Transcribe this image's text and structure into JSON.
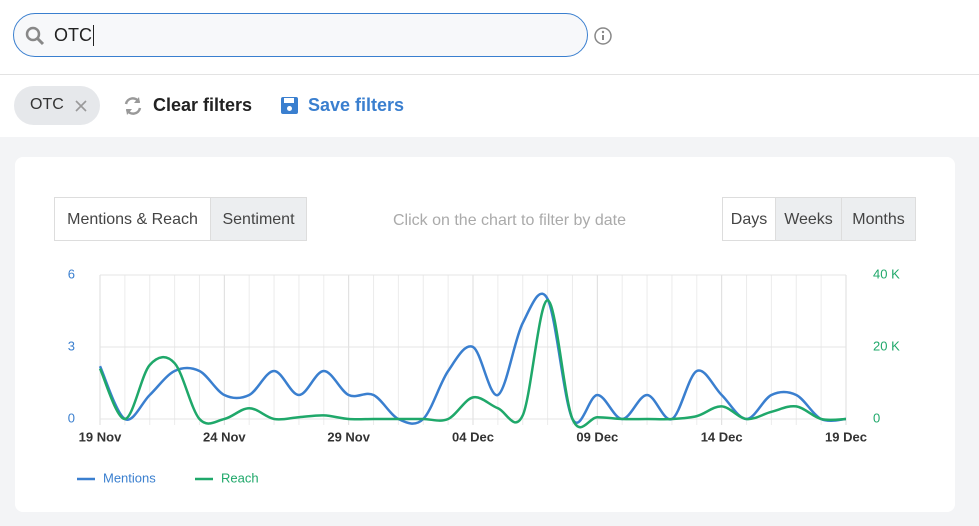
{
  "search": {
    "query": "OTC"
  },
  "filters": {
    "chips": [
      "OTC"
    ],
    "clear": "Clear filters",
    "save": "Save filters"
  },
  "toolbar": {
    "views": [
      "Mentions & Reach",
      "Sentiment"
    ],
    "hint": "Click on the chart to filter by date",
    "periods": [
      "Days",
      "Weeks",
      "Months"
    ]
  },
  "chart_data": {
    "type": "line",
    "categories": [
      "19 Nov",
      null,
      null,
      null,
      null,
      "24 Nov",
      null,
      null,
      null,
      null,
      "29 Nov",
      null,
      null,
      null,
      null,
      "04 Dec",
      null,
      null,
      null,
      null,
      "09 Dec",
      null,
      null,
      null,
      null,
      "14 Dec",
      null,
      null,
      null,
      null,
      "19 Dec"
    ],
    "series": [
      {
        "name": "Mentions",
        "color": "#3a7fcf",
        "values": [
          2.2,
          0,
          1,
          2,
          2,
          1,
          1,
          2,
          1,
          2,
          1,
          1,
          0,
          0,
          2,
          3,
          1,
          4,
          5,
          0,
          1,
          0,
          1,
          0,
          2,
          1,
          0,
          1,
          1,
          0,
          0
        ]
      },
      {
        "name": "Reach",
        "color": "#1fa86a",
        "axis": "y2",
        "values": [
          14000,
          0,
          15000,
          15500,
          0,
          0,
          3000,
          0,
          500,
          1000,
          0,
          0,
          0,
          0,
          0,
          6000,
          3000,
          1000,
          33000,
          0,
          500,
          0,
          0,
          0,
          800,
          3500,
          0,
          2000,
          3500,
          0,
          0
        ]
      }
    ],
    "ylim": [
      0,
      6
    ],
    "yticks": [
      0,
      3,
      6
    ],
    "y2lim": [
      0,
      40000
    ],
    "y2ticks": [
      0,
      {
        "value": 20000,
        "label": "20 K"
      },
      {
        "value": 40000,
        "label": "40 K"
      }
    ],
    "grid": true,
    "legend": "bottom-left"
  }
}
